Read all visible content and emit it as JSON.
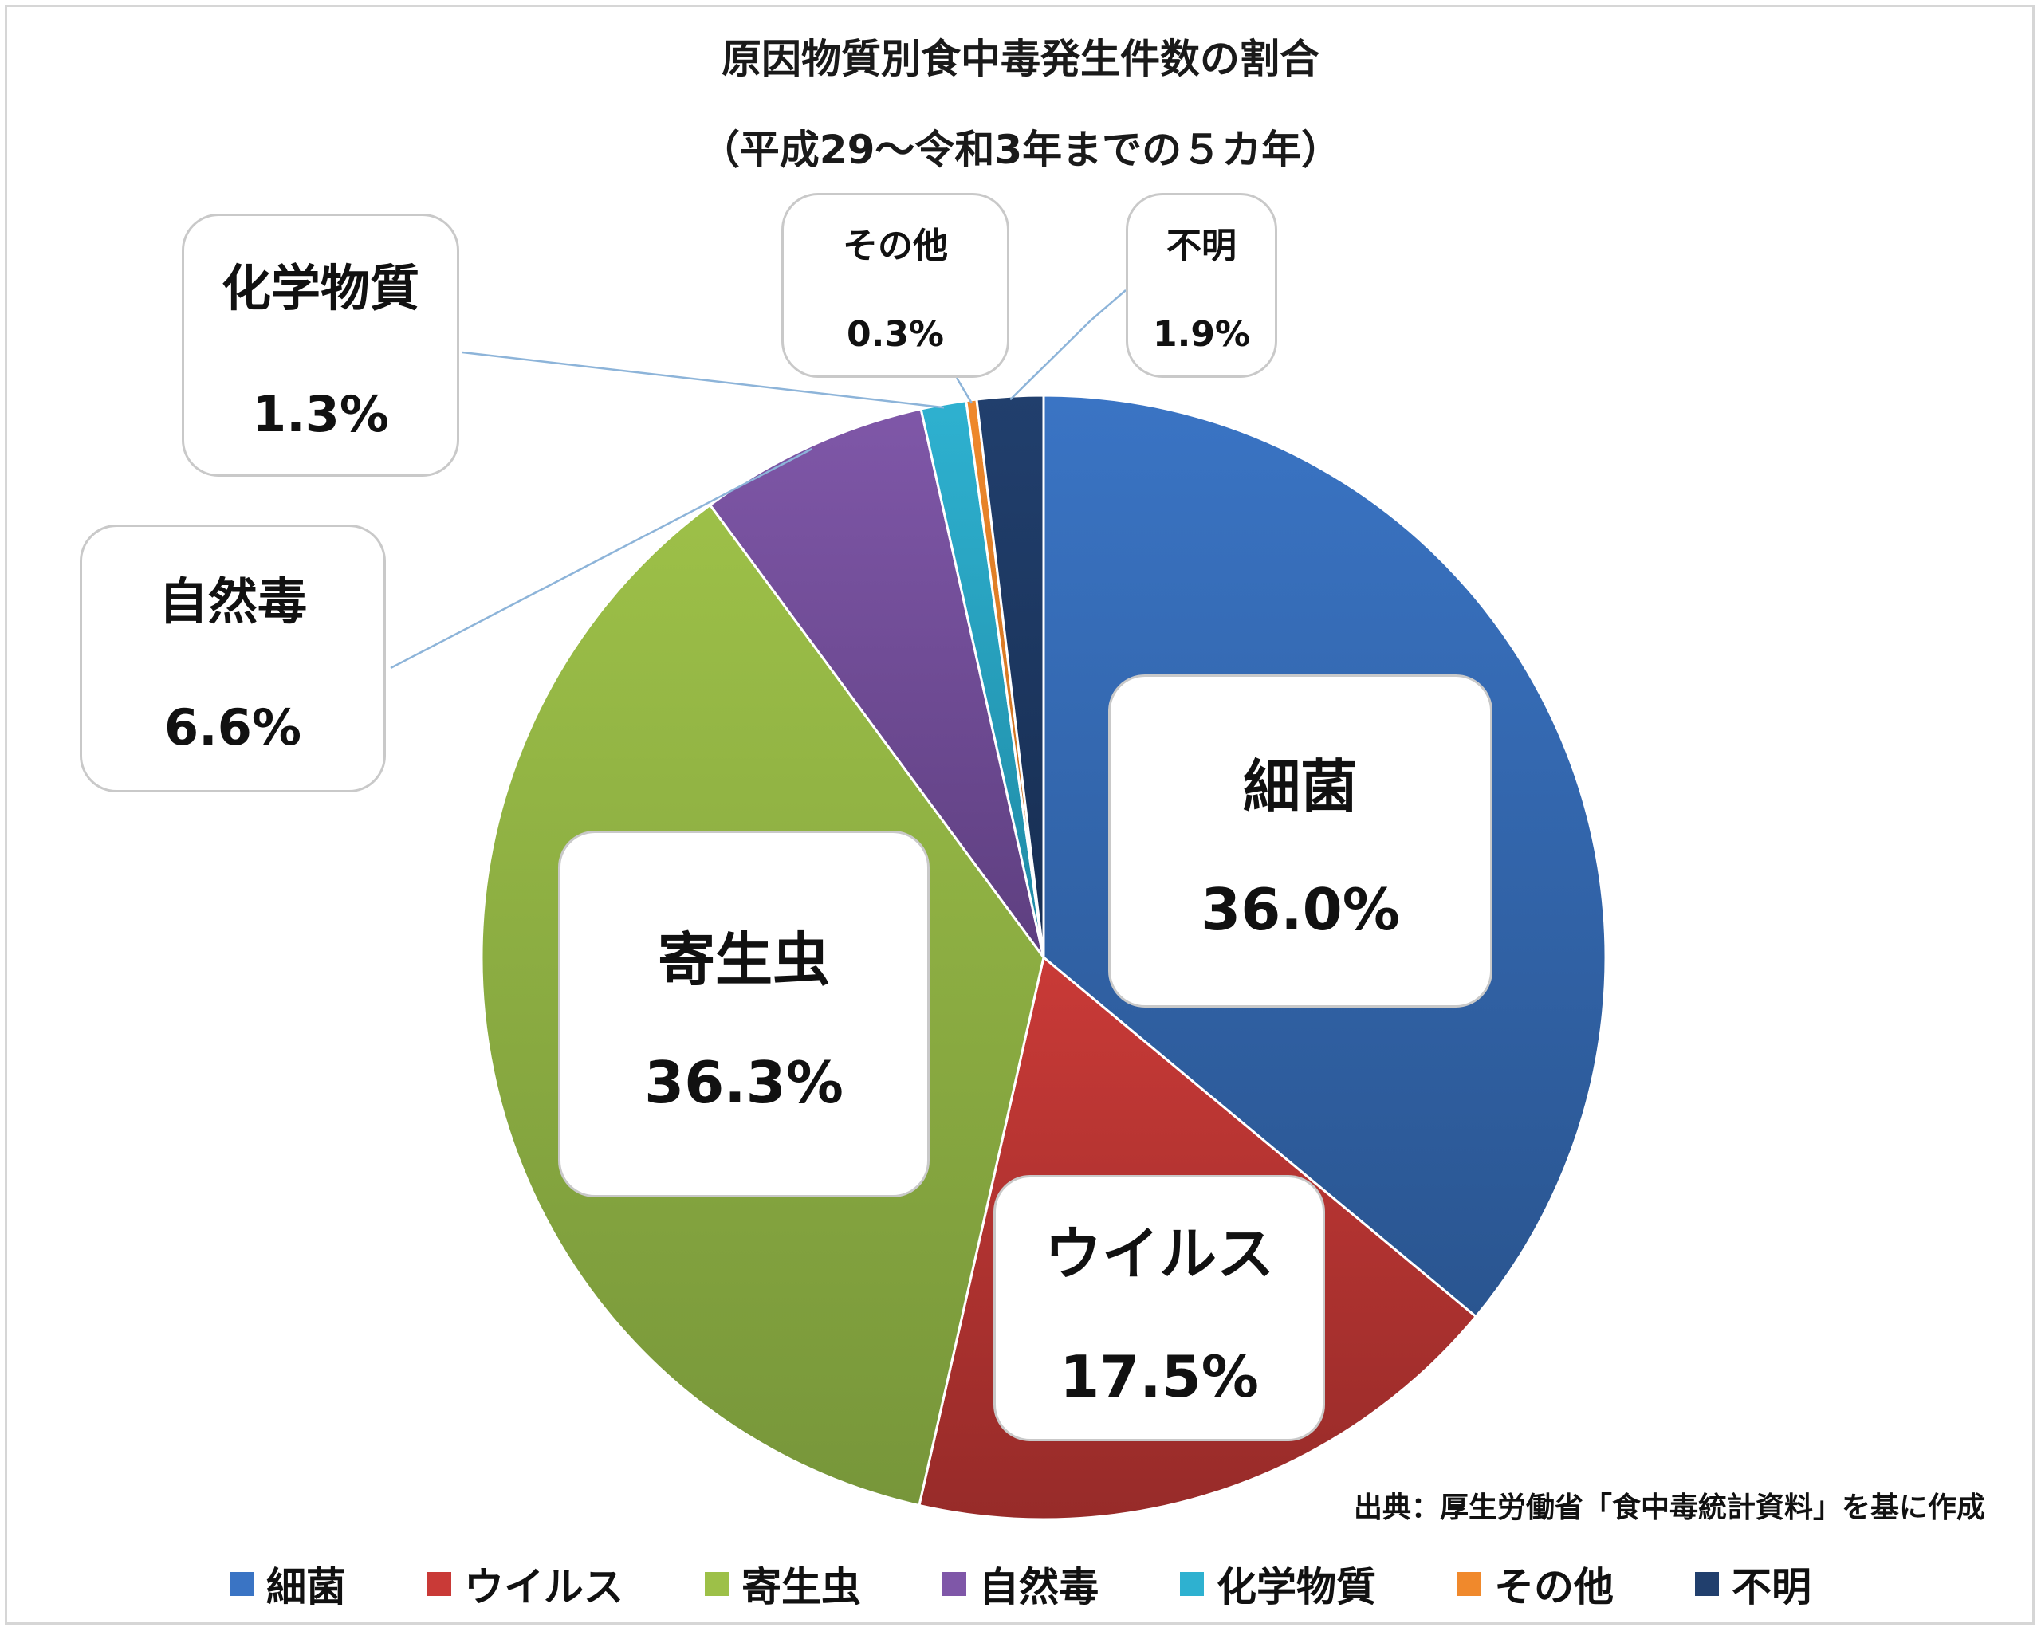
{
  "title_line1": "原因物質別食中毒発生件数の割合",
  "title_line2": "（平成29～令和3年までの５カ年）",
  "source_note": "出典：厚生労働省「食中毒統計資料」を基に作成",
  "chart_data": {
    "type": "pie",
    "title": "原因物質別食中毒発生件数の割合（平成29～令和3年までの５カ年）",
    "start": "12 o'clock",
    "direction": "clockwise",
    "legend_position": "bottom",
    "slices": [
      {
        "label": "細菌",
        "value": 36.0,
        "display": "36.0%",
        "color": "#3a74c4",
        "color_dark": "#2a5590"
      },
      {
        "label": "ウイルス",
        "value": 17.5,
        "display": "17.5%",
        "color": "#c93a37",
        "color_dark": "#972b29"
      },
      {
        "label": "寄生虫",
        "value": 36.3,
        "display": "36.3%",
        "color": "#9dc048",
        "color_dark": "#77963a"
      },
      {
        "label": "自然毒",
        "value": 6.6,
        "display": "6.6%",
        "color": "#7f57a8",
        "color_dark": "#5e3f80"
      },
      {
        "label": "化学物質",
        "value": 1.3,
        "display": "1.3%",
        "color": "#2eb1d0",
        "color_dark": "#1f8aa5"
      },
      {
        "label": "その他",
        "value": 0.3,
        "display": "0.3%",
        "color": "#f0892c",
        "color_dark": "#c06a1c"
      },
      {
        "label": "不明",
        "value": 1.9,
        "display": "1.9%",
        "color": "#213f6d",
        "color_dark": "#172e52"
      }
    ]
  }
}
